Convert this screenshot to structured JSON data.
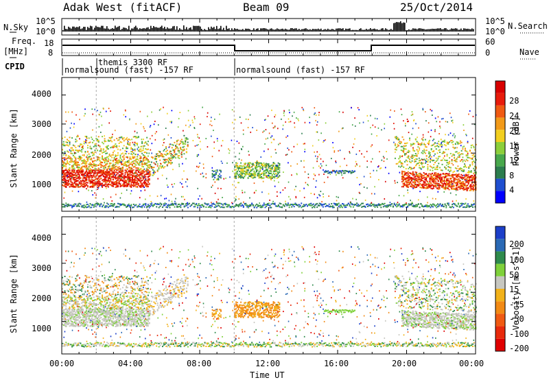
{
  "header": {
    "radar": "Adak West (fitACF)",
    "beam": "Beam 09",
    "date": "25/Oct/2014"
  },
  "left_labels": {
    "nsky": "N.Sky",
    "freq_line1": "Freq.",
    "freq_line2": "[MHz]",
    "cpid": "CPID"
  },
  "right_labels": {
    "nsearch": "N.Search",
    "nave": "Nave"
  },
  "noise_axis": {
    "left_top": "10^5",
    "left_bottom": "10^0",
    "right_top": "10^5",
    "right_bottom": "10^0"
  },
  "freq_axis": {
    "left_top": "18",
    "left_bottom": "8",
    "right_top": "60",
    "right_bottom": "0"
  },
  "cpid": {
    "prog1": "normalsound (fast) -157 RF",
    "prog2": "themis 3300 RF",
    "prog3": "normalsound (fast) -157 RF"
  },
  "time_labels": [
    "00:00",
    "04:00",
    "08:00",
    "12:00",
    "16:00",
    "20:00",
    "00:00"
  ],
  "xlabel": "Time UT",
  "chart_data": [
    {
      "type": "heatmap",
      "ylabel": "Slant Range [km]",
      "yticks": [
        "1000",
        "2000",
        "3000",
        "4000"
      ],
      "colorbar_label": "Power [dB]",
      "colorbar_ticks": [
        "4",
        "8",
        "12",
        "16",
        "20",
        "24",
        "28"
      ],
      "colorbar_colors": [
        "#0000ff",
        "#1f4fd0",
        "#2c7d4e",
        "#48a84c",
        "#8ccf3a",
        "#f2cf1f",
        "#f29a19",
        "#f05a12",
        "#e81b0b",
        "#d80000"
      ]
    },
    {
      "type": "heatmap",
      "ylabel": "Slant Range [km]",
      "yticks": [
        "1000",
        "2000",
        "3000",
        "4000"
      ],
      "colorbar_label": "Velocity [m s^-1]",
      "colorbar_ticks": [
        "200",
        "100",
        "50",
        "15",
        "-15",
        "-50",
        "-100",
        "-200"
      ],
      "colorbar_colors": [
        "#1c3fc9",
        "#2a69b5",
        "#2e8a4c",
        "#7fd13a",
        "#c7c7c0",
        "#f2b21a",
        "#f28a14",
        "#f05a12",
        "#e82a0c",
        "#e00000"
      ]
    }
  ]
}
